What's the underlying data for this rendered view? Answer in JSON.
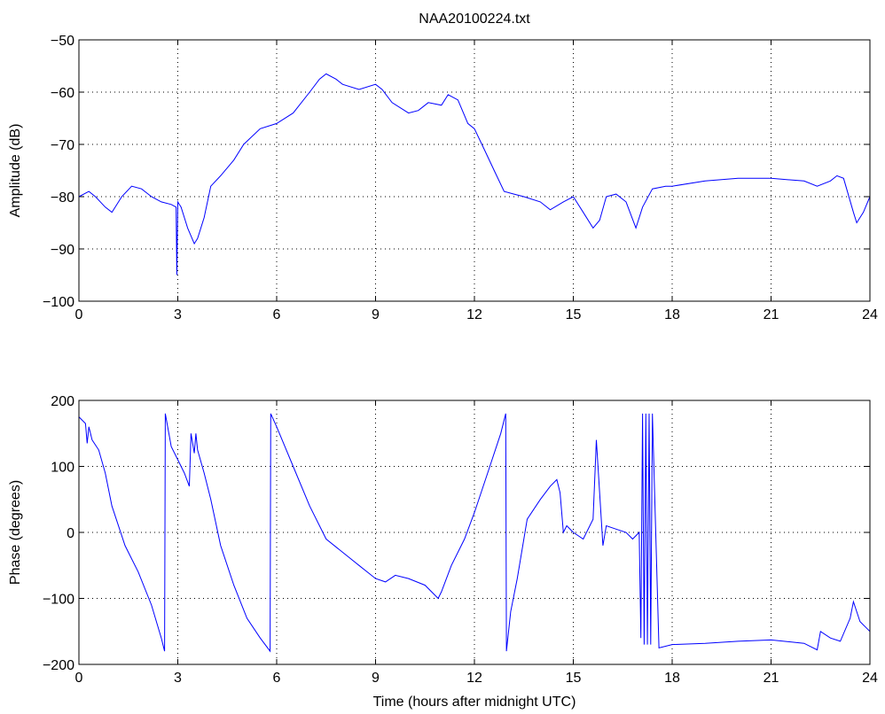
{
  "figure": {
    "title": "NAA20100224.txt",
    "xlabel": "Time (hours after midnight UTC)"
  },
  "chart_data": [
    {
      "type": "line",
      "title": "NAA20100224.txt",
      "xlabel": "",
      "ylabel": "Amplitude (dB)",
      "xlim": [
        0,
        24
      ],
      "ylim": [
        -100,
        -50
      ],
      "xticks": [
        0,
        3,
        6,
        9,
        12,
        15,
        18,
        21,
        24
      ],
      "yticks": [
        -100,
        -90,
        -80,
        -70,
        -60,
        -50
      ],
      "grid": true,
      "color": "#0000ff",
      "series": [
        {
          "x": [
            0,
            0.3,
            0.5,
            0.8,
            1.0,
            1.3,
            1.6,
            1.9,
            2.2,
            2.5,
            2.8,
            2.95,
            2.97,
            3.0,
            3.1,
            3.3,
            3.5,
            3.6,
            3.8,
            4.0,
            4.3,
            4.7,
            5.0,
            5.5,
            6.0,
            6.5,
            7.0,
            7.3,
            7.5,
            7.8,
            8.0,
            8.5,
            9.0,
            9.2,
            9.5,
            10.0,
            10.3,
            10.6,
            11.0,
            11.2,
            11.5,
            11.8,
            12.0,
            12.3,
            12.6,
            12.9,
            13.2,
            13.5,
            14.0,
            14.3,
            14.7,
            15.0,
            15.3,
            15.6,
            15.8,
            16.0,
            16.3,
            16.6,
            16.9,
            17.1,
            17.4,
            17.8,
            18.0,
            19.0,
            20.0,
            21.0,
            22.0,
            22.4,
            22.8,
            23.0,
            23.2,
            23.5,
            23.6,
            23.8,
            24.0
          ],
          "y": [
            -80,
            -79,
            -80,
            -82,
            -83,
            -80,
            -78,
            -78.5,
            -80,
            -81,
            -81.5,
            -82,
            -95,
            -81,
            -82,
            -86,
            -89,
            -88,
            -84,
            -78,
            -76,
            -73,
            -70,
            -67,
            -66,
            -64,
            -60,
            -57.5,
            -56.5,
            -57.5,
            -58.5,
            -59.5,
            -58.5,
            -59.5,
            -62,
            -64,
            -63.5,
            -62,
            -62.5,
            -60.5,
            -61.5,
            -66,
            -67,
            -71,
            -75,
            -79,
            -79.5,
            -80,
            -81,
            -82.5,
            -81,
            -80,
            -83,
            -86,
            -84.5,
            -80,
            -79.5,
            -81,
            -86,
            -82,
            -78.5,
            -78,
            -78,
            -77,
            -76.5,
            -76.5,
            -77,
            -78,
            -77,
            -76,
            -76.5,
            -83,
            -85,
            -83,
            -80
          ]
        }
      ]
    },
    {
      "type": "line",
      "title": "",
      "xlabel": "Time (hours after midnight UTC)",
      "ylabel": "Phase (degrees)",
      "xlim": [
        0,
        24
      ],
      "ylim": [
        -200,
        200
      ],
      "xticks": [
        0,
        3,
        6,
        9,
        12,
        15,
        18,
        21,
        24
      ],
      "yticks": [
        -200,
        -100,
        0,
        100,
        200
      ],
      "grid": true,
      "color": "#0000ff",
      "series": [
        {
          "x": [
            0,
            0.2,
            0.25,
            0.3,
            0.4,
            0.6,
            0.8,
            1.0,
            1.4,
            1.8,
            2.2,
            2.5,
            2.6,
            2.62,
            2.8,
            3.0,
            3.2,
            3.35,
            3.4,
            3.5,
            3.55,
            3.6,
            3.8,
            4.0,
            4.3,
            4.7,
            5.1,
            5.5,
            5.8,
            5.82,
            6.0,
            6.5,
            7.0,
            7.5,
            8.0,
            8.5,
            9.0,
            9.3,
            9.6,
            10.0,
            10.5,
            10.9,
            11.0,
            11.3,
            11.7,
            12.0,
            12.4,
            12.8,
            12.95,
            12.97,
            13.1,
            13.3,
            13.6,
            14.0,
            14.3,
            14.5,
            14.6,
            14.7,
            14.8,
            15.0,
            15.3,
            15.6,
            15.7,
            15.8,
            15.9,
            16.0,
            16.3,
            16.6,
            16.8,
            17.0,
            17.05,
            17.1,
            17.15,
            17.2,
            17.25,
            17.3,
            17.35,
            17.4,
            17.6,
            18.0,
            19.0,
            20.0,
            21.0,
            22.0,
            22.4,
            22.5,
            22.8,
            23.1,
            23.4,
            23.5,
            23.7,
            24.0
          ],
          "y": [
            175,
            165,
            135,
            160,
            140,
            125,
            90,
            40,
            -20,
            -60,
            -110,
            -160,
            -180,
            180,
            130,
            110,
            90,
            70,
            150,
            120,
            150,
            125,
            90,
            50,
            -20,
            -80,
            -130,
            -160,
            -180,
            180,
            160,
            100,
            40,
            -10,
            -30,
            -50,
            -70,
            -75,
            -65,
            -70,
            -80,
            -100,
            -90,
            -50,
            -10,
            30,
            90,
            150,
            180,
            -180,
            -120,
            -70,
            20,
            50,
            70,
            80,
            60,
            0,
            10,
            0,
            -10,
            20,
            140,
            60,
            -20,
            10,
            5,
            0,
            -10,
            0,
            -160,
            180,
            -170,
            180,
            -170,
            180,
            -170,
            180,
            -175,
            -170,
            -168,
            -165,
            -163,
            -168,
            -178,
            -150,
            -160,
            -165,
            -130,
            -105,
            -135,
            -150
          ]
        }
      ]
    }
  ]
}
